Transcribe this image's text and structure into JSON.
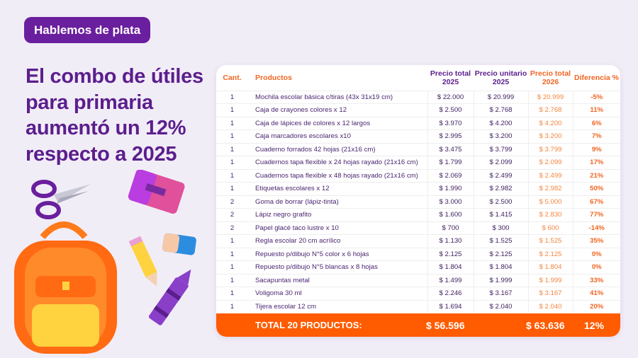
{
  "badge": "Hablemos de plata",
  "headline": "El combo de útiles para primaria aumentó un 12% respecto a 2025",
  "table": {
    "headers": [
      "Cant.",
      "Productos",
      "Precio total 2025",
      "Precio unitario 2025",
      "Precio total 2026",
      "Diferencia %"
    ],
    "rows": [
      [
        "1",
        "Mochila escolar básica c/tiras (43x 31x19 cm)",
        "$ 22.000",
        "$ 20.999",
        "$ 20.999",
        "-5%"
      ],
      [
        "1",
        "Caja de crayones colores x 12",
        "$ 2.500",
        "$ 2.768",
        "$ 2.768",
        "11%"
      ],
      [
        "1",
        "Caja de lápices de colores x 12 largos",
        "$ 3.970",
        "$ 4.200",
        "$ 4.200",
        "6%"
      ],
      [
        "1",
        "Caja marcadores escolares x10",
        "$ 2.995",
        "$ 3.200",
        "$ 3.200",
        "7%"
      ],
      [
        "1",
        "Cuaderno forrados 42 hojas (21x16 cm)",
        "$ 3.475",
        "$ 3.799",
        "$ 3.799",
        "9%"
      ],
      [
        "1",
        "Cuadernos tapa flexible x 24 hojas rayado (21x16 cm)",
        "$ 1.799",
        "$ 2.099",
        "$ 2.099",
        "17%"
      ],
      [
        "1",
        "Cuadernos tapa flexible x 48 hojas rayado (21x16 cm)",
        "$ 2.069",
        "$ 2.499",
        "$ 2.499",
        "21%"
      ],
      [
        "1",
        "Etiquetas escolares x 12",
        "$ 1.990",
        "$ 2.982",
        "$ 2.982",
        "50%"
      ],
      [
        "2",
        "Goma de borrar (lápiz-tinta)",
        "$ 3.000",
        "$ 2.500",
        "$ 5.000",
        "67%"
      ],
      [
        "2",
        "Lápiz negro grafito",
        "$ 1.600",
        "$ 1.415",
        "$ 2.830",
        "77%"
      ],
      [
        "2",
        "Papel glacé taco lustre x 10",
        "$ 700",
        "$ 300",
        "$ 600",
        "-14%"
      ],
      [
        "1",
        "Regla escolar 20 cm acrílico",
        "$ 1.130",
        "$ 1.525",
        "$ 1.525",
        "35%"
      ],
      [
        "1",
        "Repuesto p/dibujo N°5 color x 6 hojas",
        "$ 2.125",
        "$ 2.125",
        "$ 2.125",
        "0%"
      ],
      [
        "1",
        "Repuesto p/dibujo N°5 blancas x 8 hojas",
        "$ 1.804",
        "$ 1.804",
        "$ 1.804",
        "0%"
      ],
      [
        "1",
        "Sacapuntas metal",
        "$ 1.499",
        "$ 1.999",
        "$ 1.999",
        "33%"
      ],
      [
        "1",
        "Voligoma 30 ml",
        "$ 2.246",
        "$ 3.167",
        "$ 3.167",
        "41%"
      ],
      [
        "1",
        "Tijera escolar 12 cm",
        "$ 1.694",
        "$ 2.040",
        "$ 2.040",
        "20%"
      ]
    ],
    "total": {
      "label": "TOTAL 20 PRODUCTOS:",
      "total_2025": "$ 56.596",
      "total_2026": "$ 63.636",
      "diff": "12%"
    }
  },
  "colors": {
    "purple": "#6a1f9e",
    "orange": "#ff5b00",
    "background": "#f1edf7"
  }
}
